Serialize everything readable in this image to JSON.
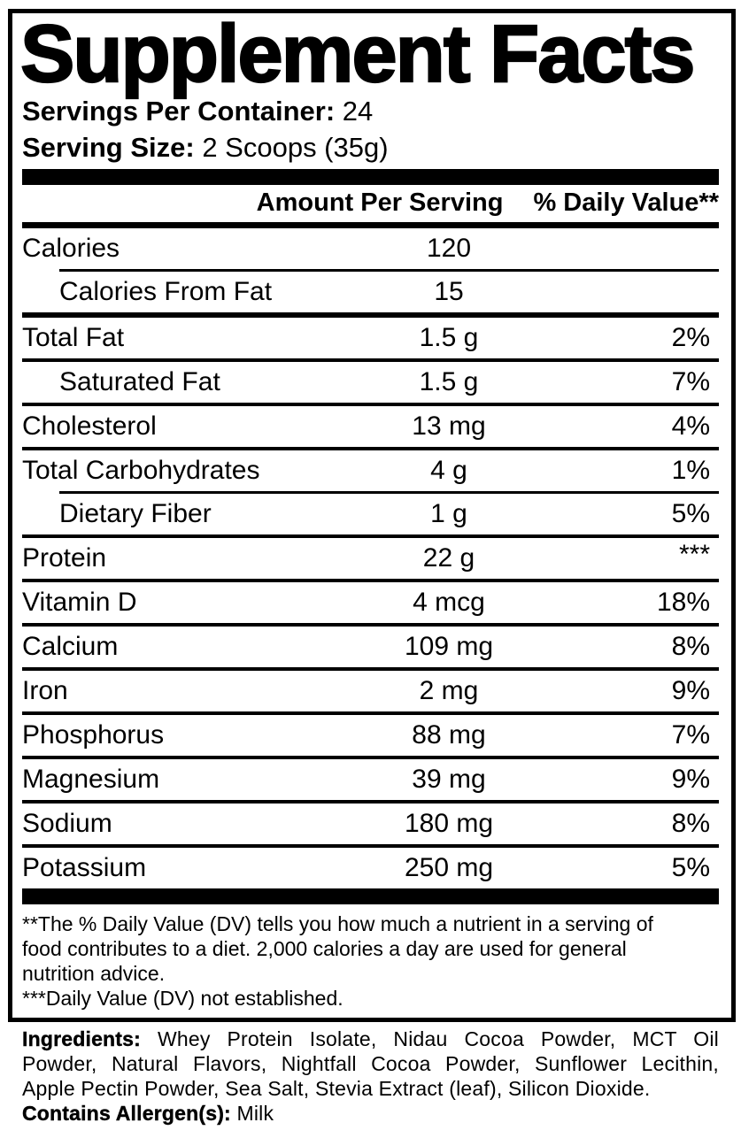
{
  "title": "Supplement Facts",
  "servings_per_container": {
    "label": "Servings Per Container:",
    "value": "24"
  },
  "serving_size": {
    "label": "Serving Size:",
    "value": "2 Scoops (35g)"
  },
  "table": {
    "amount_header": "Amount Per Serving",
    "dv_header": "% Daily Value**",
    "rows": [
      {
        "label": "Calories",
        "amount": "120",
        "dv": ""
      },
      {
        "label": "Calories From Fat",
        "amount": "15",
        "dv": ""
      },
      {
        "label": "Total Fat",
        "amount": "1.5 g",
        "dv": "2%"
      },
      {
        "label": "Saturated Fat",
        "amount": "1.5 g",
        "dv": "7%"
      },
      {
        "label": "Cholesterol",
        "amount": "13 mg",
        "dv": "4%"
      },
      {
        "label": "Total Carbohydrates",
        "amount": "4 g",
        "dv": "1%"
      },
      {
        "label": "Dietary Fiber",
        "amount": "1 g",
        "dv": "5%"
      },
      {
        "label": "Protein",
        "amount": "22 g",
        "dv": "***"
      },
      {
        "label": "Vitamin D",
        "amount": "4 mcg",
        "dv": "18%"
      },
      {
        "label": "Calcium",
        "amount": "109 mg",
        "dv": "8%"
      },
      {
        "label": "Iron",
        "amount": "2 mg",
        "dv": "9%"
      },
      {
        "label": "Phosphorus",
        "amount": "88 mg",
        "dv": "7%"
      },
      {
        "label": "Magnesium",
        "amount": "39 mg",
        "dv": "9%"
      },
      {
        "label": "Sodium",
        "amount": "180 mg",
        "dv": "8%"
      },
      {
        "label": "Potassium",
        "amount": "250 mg",
        "dv": "5%"
      }
    ]
  },
  "footnote": {
    "line1": "**The % Daily Value (DV) tells you how much a nutrient in a serving of",
    "line2": "food contributes to a diet. 2,000 calories a day are used for general",
    "line3": "nutrition advice.",
    "line4": "***Daily Value (DV) not established."
  },
  "ingredients": {
    "label": "Ingredients:",
    "line1_rest": "Whey Protein Isolate, Nidau Cocoa Powder, MCT Oil",
    "line2": "Powder, Natural Flavors, Nightfall Cocoa Powder, Sunflower Lecithin,",
    "line3": "Apple Pectin Powder, Sea Salt, Stevia Extract (leaf), Silicon Dioxide."
  },
  "allergens": {
    "label": "Contains Allergen(s):",
    "value": "Milk"
  },
  "colors": {
    "text": "#000000",
    "background": "#ffffff"
  }
}
